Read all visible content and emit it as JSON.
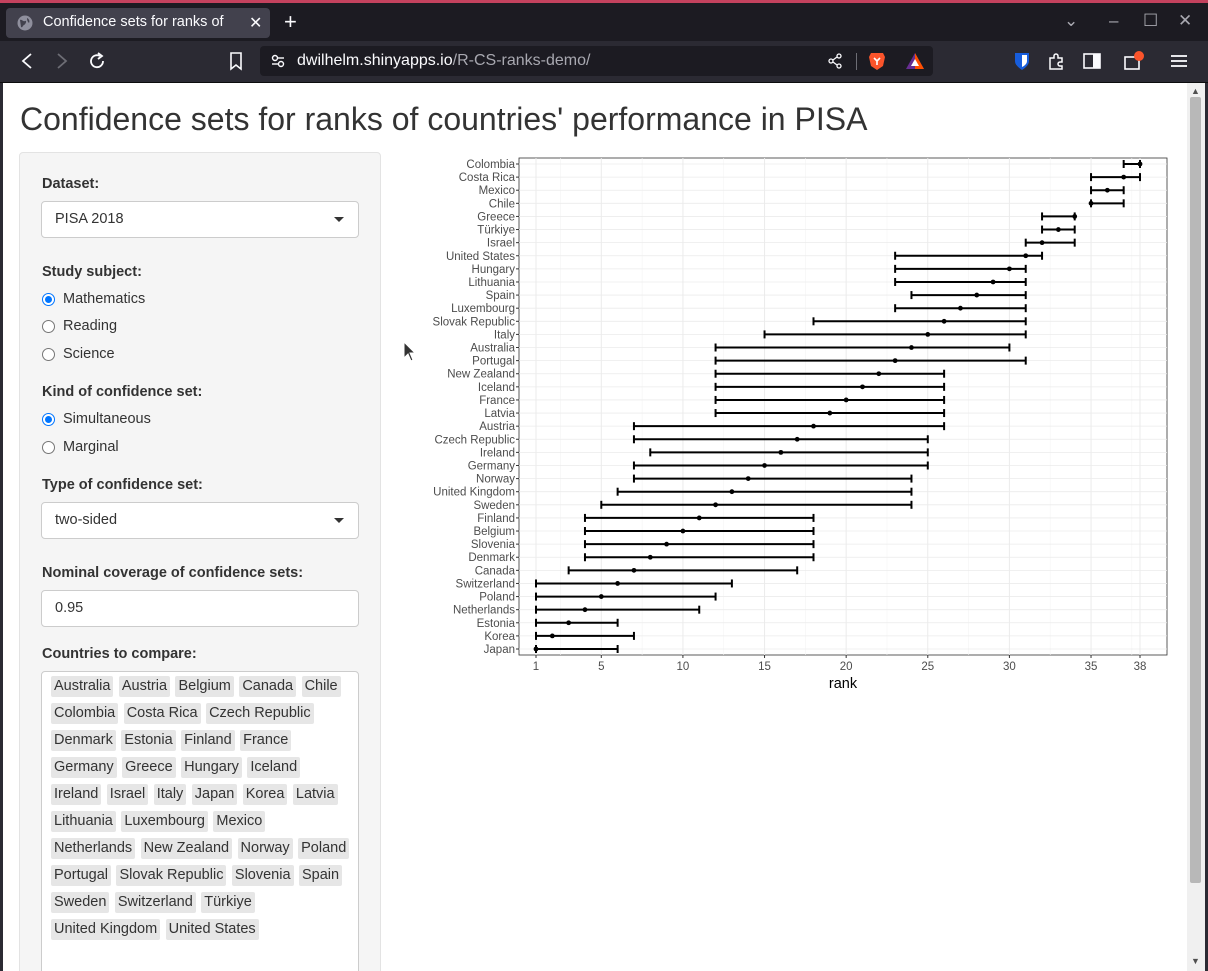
{
  "browser": {
    "tab_title": "Confidence sets for ranks of",
    "url_domain": "dwilhelm.shinyapps.io",
    "url_path": "/R-CS-ranks-demo/"
  },
  "page": {
    "title": "Confidence sets for ranks of countries' performance in PISA"
  },
  "sidebar": {
    "dataset_label": "Dataset:",
    "dataset_value": "PISA 2018",
    "subject_label": "Study subject:",
    "subjects": [
      "Mathematics",
      "Reading",
      "Science"
    ],
    "subject_selected": "Mathematics",
    "kind_label": "Kind of confidence set:",
    "kinds": [
      "Simultaneous",
      "Marginal"
    ],
    "kind_selected": "Simultaneous",
    "type_label": "Type of confidence set:",
    "type_value": "two-sided",
    "coverage_label": "Nominal coverage of confidence sets:",
    "coverage_value": "0.95",
    "countries_label": "Countries to compare:",
    "countries": [
      "Australia",
      "Austria",
      "Belgium",
      "Canada",
      "Chile",
      "Colombia",
      "Costa Rica",
      "Czech Republic",
      "Denmark",
      "Estonia",
      "Finland",
      "France",
      "Germany",
      "Greece",
      "Hungary",
      "Iceland",
      "Ireland",
      "Israel",
      "Italy",
      "Japan",
      "Korea",
      "Latvia",
      "Lithuania",
      "Luxembourg",
      "Mexico",
      "Netherlands",
      "New Zealand",
      "Norway",
      "Poland",
      "Portugal",
      "Slovak Republic",
      "Slovenia",
      "Spain",
      "Sweden",
      "Switzerland",
      "Türkiye",
      "United Kingdom",
      "United States"
    ]
  },
  "chart_data": {
    "type": "errorbar",
    "xlabel": "rank",
    "xlim": [
      1,
      38
    ],
    "xticks": [
      1,
      5,
      10,
      15,
      20,
      25,
      30,
      35,
      38
    ],
    "grid": true,
    "rows": [
      {
        "country": "Colombia",
        "rank": 38,
        "lower": 37,
        "upper": 38
      },
      {
        "country": "Costa Rica",
        "rank": 37,
        "lower": 35,
        "upper": 38
      },
      {
        "country": "Mexico",
        "rank": 36,
        "lower": 35,
        "upper": 37
      },
      {
        "country": "Chile",
        "rank": 35,
        "lower": 35,
        "upper": 37
      },
      {
        "country": "Greece",
        "rank": 34,
        "lower": 32,
        "upper": 34
      },
      {
        "country": "Türkiye",
        "rank": 33,
        "lower": 32,
        "upper": 34
      },
      {
        "country": "Israel",
        "rank": 32,
        "lower": 31,
        "upper": 34
      },
      {
        "country": "United States",
        "rank": 31,
        "lower": 23,
        "upper": 32
      },
      {
        "country": "Hungary",
        "rank": 30,
        "lower": 23,
        "upper": 31
      },
      {
        "country": "Lithuania",
        "rank": 29,
        "lower": 23,
        "upper": 31
      },
      {
        "country": "Spain",
        "rank": 28,
        "lower": 24,
        "upper": 31
      },
      {
        "country": "Luxembourg",
        "rank": 27,
        "lower": 23,
        "upper": 31
      },
      {
        "country": "Slovak Republic",
        "rank": 26,
        "lower": 18,
        "upper": 31
      },
      {
        "country": "Italy",
        "rank": 25,
        "lower": 15,
        "upper": 31
      },
      {
        "country": "Australia",
        "rank": 24,
        "lower": 12,
        "upper": 30
      },
      {
        "country": "Portugal",
        "rank": 23,
        "lower": 12,
        "upper": 31
      },
      {
        "country": "New Zealand",
        "rank": 22,
        "lower": 12,
        "upper": 26
      },
      {
        "country": "Iceland",
        "rank": 21,
        "lower": 12,
        "upper": 26
      },
      {
        "country": "France",
        "rank": 20,
        "lower": 12,
        "upper": 26
      },
      {
        "country": "Latvia",
        "rank": 19,
        "lower": 12,
        "upper": 26
      },
      {
        "country": "Austria",
        "rank": 18,
        "lower": 7,
        "upper": 26
      },
      {
        "country": "Czech Republic",
        "rank": 17,
        "lower": 7,
        "upper": 25
      },
      {
        "country": "Ireland",
        "rank": 16,
        "lower": 8,
        "upper": 25
      },
      {
        "country": "Germany",
        "rank": 15,
        "lower": 7,
        "upper": 25
      },
      {
        "country": "Norway",
        "rank": 14,
        "lower": 7,
        "upper": 24
      },
      {
        "country": "United Kingdom",
        "rank": 13,
        "lower": 6,
        "upper": 24
      },
      {
        "country": "Sweden",
        "rank": 12,
        "lower": 5,
        "upper": 24
      },
      {
        "country": "Finland",
        "rank": 11,
        "lower": 4,
        "upper": 18
      },
      {
        "country": "Belgium",
        "rank": 10,
        "lower": 4,
        "upper": 18
      },
      {
        "country": "Slovenia",
        "rank": 9,
        "lower": 4,
        "upper": 18
      },
      {
        "country": "Denmark",
        "rank": 8,
        "lower": 4,
        "upper": 18
      },
      {
        "country": "Canada",
        "rank": 7,
        "lower": 3,
        "upper": 17
      },
      {
        "country": "Switzerland",
        "rank": 6,
        "lower": 1,
        "upper": 13
      },
      {
        "country": "Poland",
        "rank": 5,
        "lower": 1,
        "upper": 12
      },
      {
        "country": "Netherlands",
        "rank": 4,
        "lower": 1,
        "upper": 11
      },
      {
        "country": "Estonia",
        "rank": 3,
        "lower": 1,
        "upper": 6
      },
      {
        "country": "Korea",
        "rank": 2,
        "lower": 1,
        "upper": 7
      },
      {
        "country": "Japan",
        "rank": 1,
        "lower": 1,
        "upper": 6
      }
    ]
  }
}
